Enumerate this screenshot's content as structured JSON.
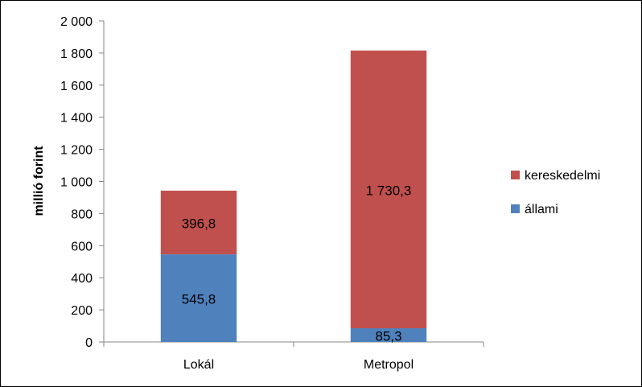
{
  "chart_data": {
    "type": "bar",
    "stacked": true,
    "categories": [
      "Lokál",
      "Metropol"
    ],
    "series": [
      {
        "name": "állami",
        "values": [
          545.8,
          85.3
        ],
        "labels": [
          "545,8",
          "85,3"
        ],
        "color": "#4F81BD"
      },
      {
        "name": "kereskedelmi",
        "values": [
          396.8,
          1730.3
        ],
        "labels": [
          "396,8",
          "1 730,3"
        ],
        "color": "#C0504D"
      }
    ],
    "ylabel": "millió forint",
    "ylim": [
      0,
      2000
    ],
    "yticks": [
      {
        "value": 0,
        "label": "0"
      },
      {
        "value": 200,
        "label": "200"
      },
      {
        "value": 400,
        "label": "400"
      },
      {
        "value": 600,
        "label": "600"
      },
      {
        "value": 800,
        "label": "800"
      },
      {
        "value": 1000,
        "label": "1 000"
      },
      {
        "value": 1200,
        "label": "1 200"
      },
      {
        "value": 1400,
        "label": "1 400"
      },
      {
        "value": 1600,
        "label": "1 600"
      },
      {
        "value": 1800,
        "label": "1 800"
      },
      {
        "value": 2000,
        "label": "2 000"
      }
    ],
    "legend": {
      "position": "right",
      "entries": [
        {
          "name": "kereskedelmi",
          "color": "#C0504D"
        },
        {
          "name": "állami",
          "color": "#4F81BD"
        }
      ]
    },
    "grid": false
  }
}
